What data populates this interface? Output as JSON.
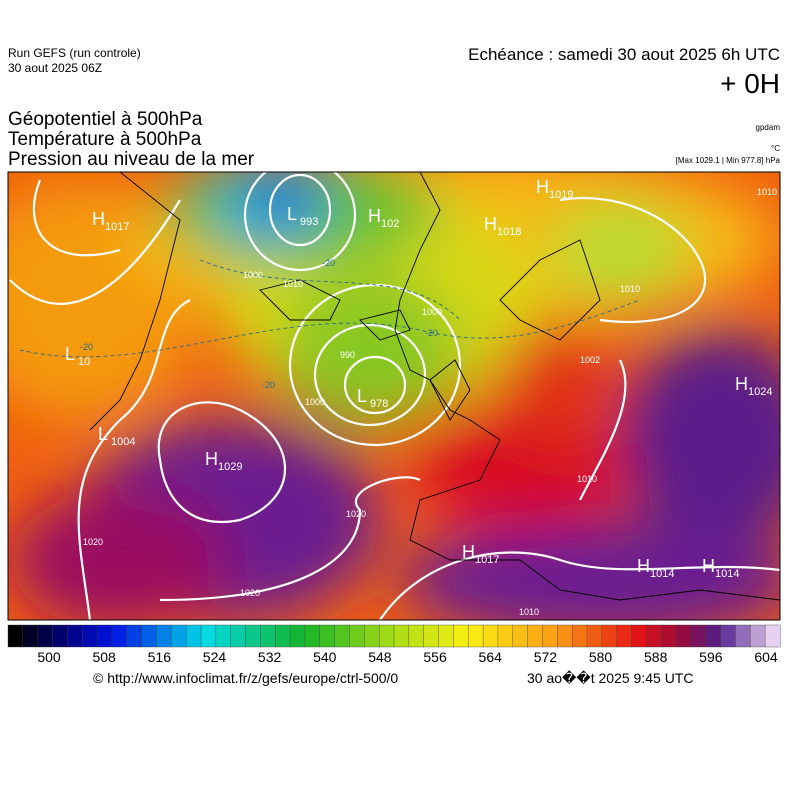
{
  "header": {
    "run": "Run GEFS (run controle)",
    "run_date": "30 aout 2025 06Z",
    "echeance": "Echéance : samedi 30 aout 2025 6h UTC",
    "offset": "+ 0H"
  },
  "titles": [
    "Géopotentiel à 500hPa",
    "Température à 500hPa",
    "Pression au niveau de la mer"
  ],
  "units": {
    "geopotential": "gpdam",
    "temperature": "°C",
    "pressure_range": "[Max 1029.1 | Min 977.8] hPa"
  },
  "centers": [
    {
      "type": "H",
      "value": "1017"
    },
    {
      "type": "L",
      "value": "993"
    },
    {
      "type": "H",
      "value": "102"
    },
    {
      "type": "H",
      "value": "1018"
    },
    {
      "type": "H",
      "value": "1019"
    },
    {
      "type": "L",
      "value": "10"
    },
    {
      "type": "L",
      "value": "978"
    },
    {
      "type": "L",
      "value": "1004"
    },
    {
      "type": "H",
      "value": "1029"
    },
    {
      "type": "H",
      "value": "1017"
    },
    {
      "type": "H",
      "value": "1014"
    },
    {
      "type": "H",
      "value": "1014"
    },
    {
      "type": "H",
      "value": "1024"
    }
  ],
  "isobar_labels": [
    "1000",
    "1010",
    "990",
    "1000",
    "1000",
    "1020",
    "1020",
    "1020",
    "1010",
    "1010",
    "1010",
    "1010",
    "1002"
  ],
  "temperature_labels": [
    "-20",
    "-20",
    "-20",
    "-20"
  ],
  "colorbar": {
    "ticks": [
      "500",
      "508",
      "516",
      "524",
      "532",
      "540",
      "548",
      "556",
      "564",
      "572",
      "580",
      "588",
      "596",
      "604"
    ]
  },
  "footer": {
    "source": "© http://www.infoclimat.fr/z/gefs/europe/ctrl-500/0",
    "generated": "30 ao��t 2025  9:45 UTC"
  }
}
